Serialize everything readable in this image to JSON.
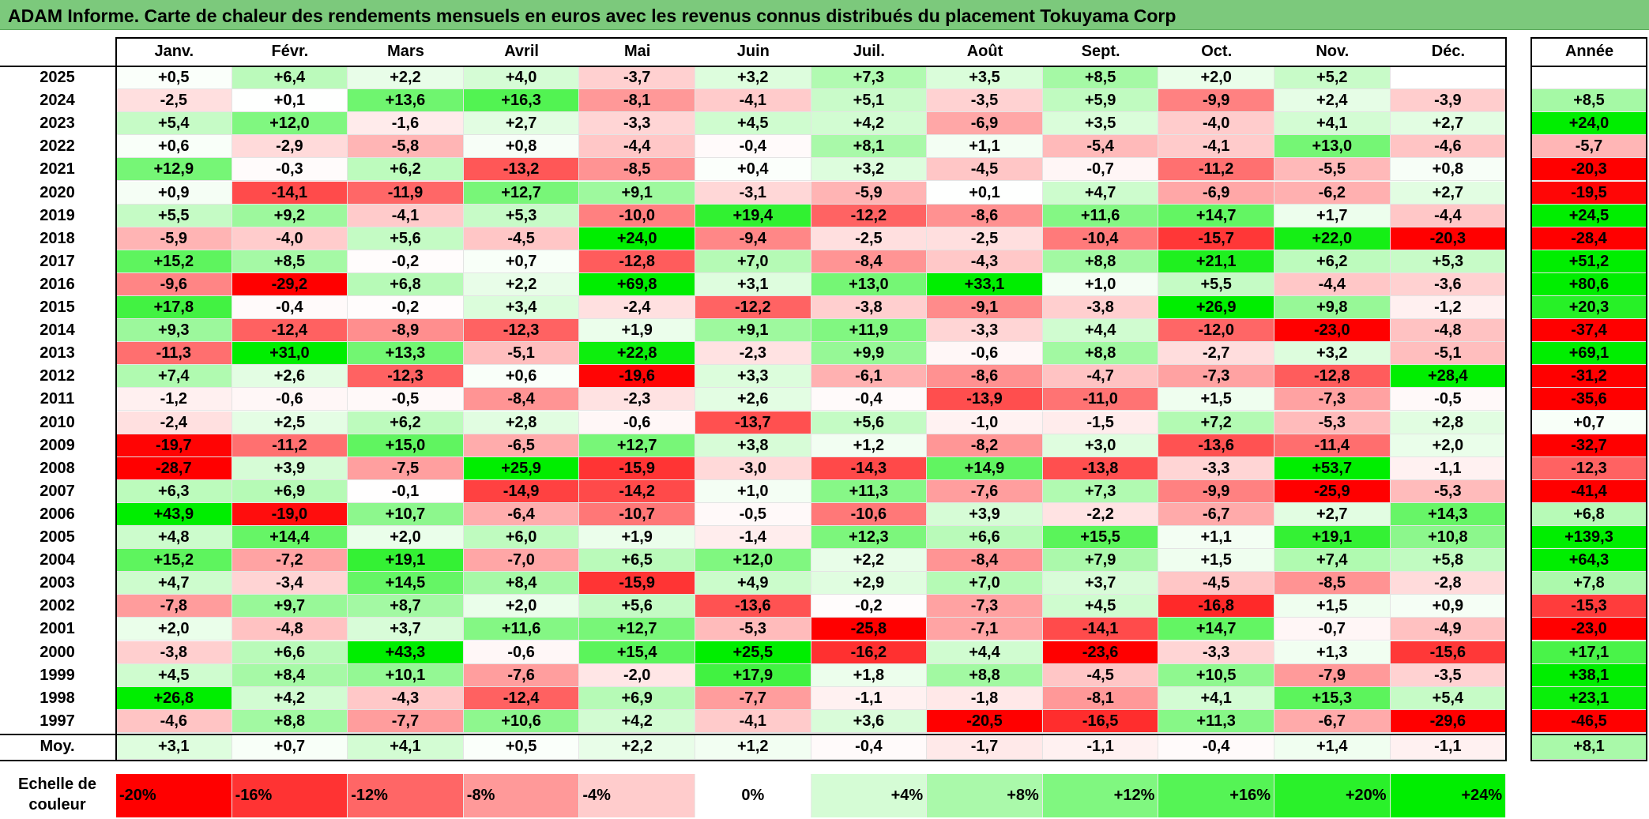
{
  "title": "ADAM Informe. Carte de chaleur des rendements mensuels en euros avec les revenus connus distribués du placement Tokuyama Corp",
  "chart_data": {
    "type": "heatmap",
    "title": "ADAM Informe. Carte de chaleur des rendements mensuels en euros avec les revenus connus distribués du placement Tokuyama Corp",
    "columns": [
      "Janv.",
      "Févr.",
      "Mars",
      "Avril",
      "Mai",
      "Juin",
      "Juil.",
      "Août",
      "Sept.",
      "Oct.",
      "Nov.",
      "Déc."
    ],
    "annual_column": "Année",
    "average_row_label": "Moy.",
    "rows": [
      {
        "year": "2025",
        "values": [
          "+0,5",
          "+6,4",
          "+2,2",
          "+4,0",
          "-3,7",
          "+3,2",
          "+7,3",
          "+3,5",
          "+8,5",
          "+2,0",
          "+5,2",
          ""
        ],
        "annual": ""
      },
      {
        "year": "2024",
        "values": [
          "-2,5",
          "+0,1",
          "+13,6",
          "+16,3",
          "-8,1",
          "-4,1",
          "+5,1",
          "-3,5",
          "+5,9",
          "-9,9",
          "+2,4",
          "-3,9"
        ],
        "annual": "+8,5"
      },
      {
        "year": "2023",
        "values": [
          "+5,4",
          "+12,0",
          "-1,6",
          "+2,7",
          "-3,3",
          "+4,5",
          "+4,2",
          "-6,9",
          "+3,5",
          "-4,0",
          "+4,1",
          "+2,7"
        ],
        "annual": "+24,0"
      },
      {
        "year": "2022",
        "values": [
          "+0,6",
          "-2,9",
          "-5,8",
          "+0,8",
          "-4,4",
          "-0,4",
          "+8,1",
          "+1,1",
          "-5,4",
          "-4,1",
          "+13,0",
          "-4,6"
        ],
        "annual": "-5,7"
      },
      {
        "year": "2021",
        "values": [
          "+12,9",
          "-0,3",
          "+6,2",
          "-13,2",
          "-8,5",
          "+0,4",
          "+3,2",
          "-4,5",
          "-0,7",
          "-11,2",
          "-5,5",
          "+0,8"
        ],
        "annual": "-20,3"
      },
      {
        "year": "2020",
        "values": [
          "+0,9",
          "-14,1",
          "-11,9",
          "+12,7",
          "+9,1",
          "-3,1",
          "-5,9",
          "+0,1",
          "+4,7",
          "-6,9",
          "-6,2",
          "+2,7"
        ],
        "annual": "-19,5"
      },
      {
        "year": "2019",
        "values": [
          "+5,5",
          "+9,2",
          "-4,1",
          "+5,3",
          "-10,0",
          "+19,4",
          "-12,2",
          "-8,6",
          "+11,6",
          "+14,7",
          "+1,7",
          "-4,4"
        ],
        "annual": "+24,5"
      },
      {
        "year": "2018",
        "values": [
          "-5,9",
          "-4,0",
          "+5,6",
          "-4,5",
          "+24,0",
          "-9,4",
          "-2,5",
          "-2,5",
          "-10,4",
          "-15,7",
          "+22,0",
          "-20,3"
        ],
        "annual": "-28,4"
      },
      {
        "year": "2017",
        "values": [
          "+15,2",
          "+8,5",
          "-0,2",
          "+0,7",
          "-12,8",
          "+7,0",
          "-8,4",
          "-4,3",
          "+8,8",
          "+21,1",
          "+6,2",
          "+5,3"
        ],
        "annual": "+51,2"
      },
      {
        "year": "2016",
        "values": [
          "-9,6",
          "-29,2",
          "+6,8",
          "+2,2",
          "+69,8",
          "+3,1",
          "+13,0",
          "+33,1",
          "+1,0",
          "+5,5",
          "-4,4",
          "-3,6"
        ],
        "annual": "+80,6"
      },
      {
        "year": "2015",
        "values": [
          "+17,8",
          "-0,4",
          "-0,2",
          "+3,4",
          "-2,4",
          "-12,2",
          "-3,8",
          "-9,1",
          "-3,8",
          "+26,9",
          "+9,8",
          "-1,2"
        ],
        "annual": "+20,3"
      },
      {
        "year": "2014",
        "values": [
          "+9,3",
          "-12,4",
          "-8,9",
          "-12,3",
          "+1,9",
          "+9,1",
          "+11,9",
          "-3,3",
          "+4,4",
          "-12,0",
          "-23,0",
          "-4,8"
        ],
        "annual": "-37,4"
      },
      {
        "year": "2013",
        "values": [
          "-11,3",
          "+31,0",
          "+13,3",
          "-5,1",
          "+22,8",
          "-2,3",
          "+9,9",
          "-0,6",
          "+8,8",
          "-2,7",
          "+3,2",
          "-5,1"
        ],
        "annual": "+69,1"
      },
      {
        "year": "2012",
        "values": [
          "+7,4",
          "+2,6",
          "-12,3",
          "+0,6",
          "-19,6",
          "+3,3",
          "-6,1",
          "-8,6",
          "-4,7",
          "-7,3",
          "-12,8",
          "+28,4"
        ],
        "annual": "-31,2"
      },
      {
        "year": "2011",
        "values": [
          "-1,2",
          "-0,6",
          "-0,5",
          "-8,4",
          "-2,3",
          "+2,6",
          "-0,4",
          "-13,9",
          "-11,0",
          "+1,5",
          "-7,3",
          "-0,5"
        ],
        "annual": "-35,6"
      },
      {
        "year": "2010",
        "values": [
          "-2,4",
          "+2,5",
          "+6,2",
          "+2,8",
          "-0,6",
          "-13,7",
          "+5,6",
          "-1,0",
          "-1,5",
          "+7,2",
          "-5,3",
          "+2,8"
        ],
        "annual": "+0,7"
      },
      {
        "year": "2009",
        "values": [
          "-19,7",
          "-11,2",
          "+15,0",
          "-6,5",
          "+12,7",
          "+3,8",
          "+1,2",
          "-8,2",
          "+3,0",
          "-13,6",
          "-11,4",
          "+2,0"
        ],
        "annual": "-32,7"
      },
      {
        "year": "2008",
        "values": [
          "-28,7",
          "+3,9",
          "-7,5",
          "+25,9",
          "-15,9",
          "-3,0",
          "-14,3",
          "+14,9",
          "-13,8",
          "-3,3",
          "+53,7",
          "-1,1"
        ],
        "annual": "-12,3"
      },
      {
        "year": "2007",
        "values": [
          "+6,3",
          "+6,9",
          "-0,1",
          "-14,9",
          "-14,2",
          "+1,0",
          "+11,3",
          "-7,6",
          "+7,3",
          "-9,9",
          "-25,9",
          "-5,3"
        ],
        "annual": "-41,4"
      },
      {
        "year": "2006",
        "values": [
          "+43,9",
          "-19,0",
          "+10,7",
          "-6,4",
          "-10,7",
          "-0,5",
          "-10,6",
          "+3,9",
          "-2,2",
          "-6,7",
          "+2,7",
          "+14,3"
        ],
        "annual": "+6,8"
      },
      {
        "year": "2005",
        "values": [
          "+4,8",
          "+14,4",
          "+2,0",
          "+6,0",
          "+1,9",
          "-1,4",
          "+12,3",
          "+6,6",
          "+15,5",
          "+1,1",
          "+19,1",
          "+10,8"
        ],
        "annual": "+139,3"
      },
      {
        "year": "2004",
        "values": [
          "+15,2",
          "-7,2",
          "+19,1",
          "-7,0",
          "+6,5",
          "+12,0",
          "+2,2",
          "-8,4",
          "+7,9",
          "+1,5",
          "+7,4",
          "+5,8"
        ],
        "annual": "+64,3"
      },
      {
        "year": "2003",
        "values": [
          "+4,7",
          "-3,4",
          "+14,5",
          "+8,4",
          "-15,9",
          "+4,9",
          "+2,9",
          "+7,0",
          "+3,7",
          "-4,5",
          "-8,5",
          "-2,8"
        ],
        "annual": "+7,8"
      },
      {
        "year": "2002",
        "values": [
          "-7,8",
          "+9,7",
          "+8,7",
          "+2,0",
          "+5,6",
          "-13,6",
          "-0,2",
          "-7,3",
          "+4,5",
          "-16,8",
          "+1,5",
          "+0,9"
        ],
        "annual": "-15,3"
      },
      {
        "year": "2001",
        "values": [
          "+2,0",
          "-4,8",
          "+3,7",
          "+11,6",
          "+12,7",
          "-5,3",
          "-25,8",
          "-7,1",
          "-14,1",
          "+14,7",
          "-0,7",
          "-4,9"
        ],
        "annual": "-23,0"
      },
      {
        "year": "2000",
        "values": [
          "-3,8",
          "+6,6",
          "+43,3",
          "-0,6",
          "+15,4",
          "+25,5",
          "-16,2",
          "+4,4",
          "-23,6",
          "-3,3",
          "+1,3",
          "-15,6"
        ],
        "annual": "+17,1"
      },
      {
        "year": "1999",
        "values": [
          "+4,5",
          "+8,4",
          "+10,1",
          "-7,6",
          "-2,0",
          "+17,9",
          "+1,8",
          "+8,8",
          "-4,5",
          "+10,5",
          "-7,9",
          "-3,5"
        ],
        "annual": "+38,1"
      },
      {
        "year": "1998",
        "values": [
          "+26,8",
          "+4,2",
          "-4,3",
          "-12,4",
          "+6,9",
          "-7,7",
          "-1,1",
          "-1,8",
          "-8,1",
          "+4,1",
          "+15,3",
          "+5,4"
        ],
        "annual": "+23,1"
      },
      {
        "year": "1997",
        "values": [
          "-4,6",
          "+8,8",
          "-7,7",
          "+10,6",
          "+4,2",
          "-4,1",
          "+3,6",
          "-20,5",
          "-16,5",
          "+11,3",
          "-6,7",
          "-29,6"
        ],
        "annual": "-46,5"
      }
    ],
    "average": {
      "label": "Moy.",
      "values": [
        "+3,1",
        "+0,7",
        "+4,1",
        "+0,5",
        "+2,2",
        "+1,2",
        "-0,4",
        "-1,7",
        "-1,1",
        "-0,4",
        "+1,4",
        "-1,1"
      ],
      "annual": "+8,1"
    },
    "color_scale": {
      "label": "Echelle de couleur",
      "stops": [
        "-20%",
        "-16%",
        "-12%",
        "-8%",
        "-4%",
        "0%",
        "+4%",
        "+8%",
        "+12%",
        "+16%",
        "+20%",
        "+24%"
      ],
      "stop_values": [
        -20,
        -16,
        -12,
        -8,
        -4,
        0,
        4,
        8,
        12,
        16,
        20,
        24
      ],
      "negative_color": "#ff0000",
      "neutral_color": "#ffffff",
      "positive_color": "#00ee00"
    }
  }
}
